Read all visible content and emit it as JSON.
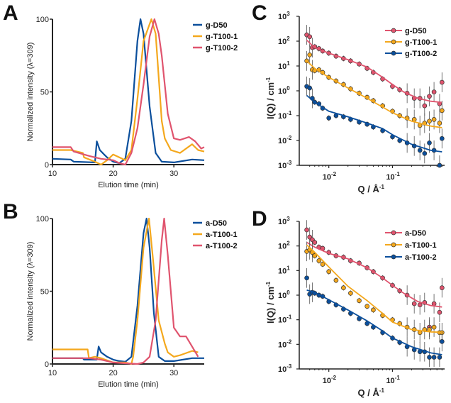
{
  "colors": {
    "blue": "#0b4f9c",
    "orange": "#f4a81d",
    "pink": "#e0546e"
  },
  "chart_data": [
    {
      "panel": "A",
      "type": "line",
      "xlabel": "Elution time (min)",
      "ylabel": "Normalized intensity (λ=309)",
      "xlim": [
        10,
        35
      ],
      "ylim": [
        0,
        100
      ],
      "xticks": [
        10,
        20,
        30
      ],
      "yticks": [
        0,
        50,
        100
      ],
      "legend_position": "top-right",
      "series": [
        {
          "name": "g-D50",
          "color": "#0b4f9c",
          "x": [
            10,
            13,
            13.5,
            17,
            17.3,
            17.8,
            18.5,
            19,
            20,
            21,
            22,
            23,
            24,
            24.5,
            25,
            26,
            27,
            28,
            30,
            33,
            35
          ],
          "y": [
            4,
            3.5,
            2,
            1.5,
            16,
            10,
            7,
            5,
            2,
            1,
            4,
            30,
            85,
            100,
            90,
            40,
            8,
            2,
            1.5,
            3.5,
            3
          ]
        },
        {
          "name": "g-T100-1",
          "color": "#f4a81d",
          "x": [
            10,
            13,
            15,
            15.2,
            17,
            18,
            19,
            20,
            21,
            22,
            23,
            24,
            25,
            26.3,
            27,
            28,
            28.5,
            29.5,
            31,
            33,
            34,
            35
          ],
          "y": [
            10,
            10,
            8,
            5,
            2,
            0,
            3,
            7,
            5,
            3,
            10,
            45,
            85,
            100,
            90,
            30,
            18,
            10,
            8,
            14,
            10,
            9
          ]
        },
        {
          "name": "g-T100-2",
          "color": "#e0546e",
          "x": [
            10,
            13,
            13.5,
            16,
            18,
            20,
            21,
            22,
            23,
            24,
            25,
            26,
            26.8,
            27.5,
            28,
            29,
            30,
            31,
            32.5,
            33.5,
            34.5,
            35
          ],
          "y": [
            12,
            12,
            9,
            6,
            4,
            3,
            1,
            0,
            8,
            25,
            55,
            88,
            100,
            90,
            75,
            35,
            18,
            17,
            19,
            16,
            11,
            12
          ]
        }
      ]
    },
    {
      "panel": "B",
      "type": "line",
      "xlabel": "Elution time (min)",
      "ylabel": "Normalized intensity (λ=309)",
      "xlim": [
        10,
        35
      ],
      "ylim": [
        0,
        100
      ],
      "xticks": [
        10,
        20,
        30
      ],
      "yticks": [
        0,
        50,
        100
      ],
      "legend_position": "top-right",
      "series": [
        {
          "name": "a-D50",
          "color": "#0b4f9c",
          "x": [
            10,
            15,
            15.2,
            17.3,
            17.6,
            18,
            19,
            20,
            21,
            22,
            23,
            24,
            25,
            25.5,
            26,
            26.7,
            27.5,
            28.5,
            30,
            33,
            35
          ],
          "y": [
            4,
            4,
            3,
            3,
            12,
            8,
            5,
            3,
            2,
            1.5,
            5,
            40,
            90,
            100,
            80,
            35,
            5,
            2,
            2,
            4,
            4
          ]
        },
        {
          "name": "a-T100-1",
          "color": "#f4a81d",
          "x": [
            10,
            15.8,
            16,
            17,
            18,
            20,
            22,
            23,
            23.3,
            24,
            25,
            25.9,
            26.5,
            27.5,
            28.5,
            29,
            30,
            31,
            33,
            34
          ],
          "y": [
            10,
            10,
            4,
            5,
            4,
            1,
            1,
            0,
            5,
            30,
            80,
            100,
            75,
            30,
            14,
            8,
            5,
            6,
            9,
            8
          ]
        },
        {
          "name": "a-T100-2",
          "color": "#e0546e",
          "x": [
            10,
            16,
            18,
            20,
            22,
            24,
            25,
            26,
            27,
            28,
            28.4,
            29,
            30,
            31,
            32,
            33,
            34
          ],
          "y": [
            4,
            4,
            3,
            1,
            0.5,
            0,
            1,
            5,
            30,
            85,
            100,
            75,
            25,
            19,
            19,
            12,
            5
          ]
        }
      ]
    },
    {
      "panel": "C",
      "type": "scatter",
      "xlabel": "Q / Å",
      "xlabel_sup": "-1",
      "ylabel": "I(Q) / cm",
      "ylabel_sup": "-1",
      "xscale": "log",
      "yscale": "log",
      "xlim": [
        0.004,
        0.66
      ],
      "ylim": [
        0.001,
        1000
      ],
      "xticks": [
        {
          "base": "10",
          "exp": "-2",
          "value": 0.01
        },
        {
          "base": "10",
          "exp": "-1",
          "value": 0.1
        }
      ],
      "yticks": [
        {
          "base": "10",
          "exp": "-3",
          "value": 0.001
        },
        {
          "base": "10",
          "exp": "-2",
          "value": 0.01
        },
        {
          "base": "10",
          "exp": "-1",
          "value": 0.1
        },
        {
          "base": "10",
          "exp": "0",
          "value": 1
        },
        {
          "base": "10",
          "exp": "1",
          "value": 10
        },
        {
          "base": "10",
          "exp": "2",
          "value": 100
        },
        {
          "base": "10",
          "exp": "3",
          "value": 1000
        }
      ],
      "legend_position": "top-right",
      "q": [
        0.0045,
        0.005,
        0.0055,
        0.006,
        0.007,
        0.008,
        0.01,
        0.013,
        0.017,
        0.022,
        0.03,
        0.04,
        0.05,
        0.07,
        0.1,
        0.13,
        0.17,
        0.22,
        0.27,
        0.32,
        0.38,
        0.45,
        0.55,
        0.6
      ],
      "series": [
        {
          "name": "g-D50",
          "color": "#e0546e",
          "I": [
            180,
            150,
            55,
            60,
            50,
            40,
            33,
            25,
            20,
            16,
            12,
            8,
            5.5,
            3,
            1.5,
            1.1,
            0.8,
            0.5,
            0.5,
            0.25,
            0.6,
            0.9,
            0.3,
            2.2
          ],
          "fit": {
            "q": [
              0.0045,
              0.006,
              0.01,
              0.02,
              0.04,
              0.07,
              0.1,
              0.15,
              0.25,
              0.4,
              0.6
            ],
            "I": [
              110,
              55,
              33,
              18,
              9,
              3.5,
              1.8,
              0.9,
              0.5,
              0.38,
              0.34
            ]
          }
        },
        {
          "name": "g-T100-1",
          "color": "#f4a81d",
          "I": [
            16,
            28,
            7,
            6.5,
            7,
            5.5,
            3.5,
            2.5,
            1.8,
            1.2,
            0.8,
            0.55,
            0.4,
            0.25,
            0.15,
            0.1,
            0.08,
            0.07,
            0.04,
            0.05,
            0.06,
            0.07,
            0.05,
            0.16
          ],
          "fit": {
            "q": [
              0.0045,
              0.006,
              0.01,
              0.02,
              0.04,
              0.07,
              0.1,
              0.2,
              0.4,
              0.6
            ],
            "I": [
              16,
              8,
              3.5,
              1.3,
              0.5,
              0.22,
              0.13,
              0.06,
              0.038,
              0.033
            ]
          }
        },
        {
          "name": "g-T100-2",
          "color": "#0b4f9c",
          "I": [
            1.5,
            1.3,
            0.5,
            0.35,
            0.3,
            0.2,
            0.08,
            0.1,
            0.09,
            0.07,
            0.055,
            0.045,
            0.035,
            0.025,
            0.014,
            0.01,
            0.008,
            0.006,
            0.004,
            0.003,
            0.008,
            0.004,
            0.001,
            0.012
          ],
          "fit": {
            "q": [
              0.0045,
              0.006,
              0.01,
              0.02,
              0.04,
              0.07,
              0.1,
              0.2,
              0.4,
              0.6
            ],
            "I": [
              0.65,
              0.35,
              0.15,
              0.09,
              0.05,
              0.03,
              0.017,
              0.007,
              0.004,
              0.0035
            ]
          }
        }
      ]
    },
    {
      "panel": "D",
      "type": "scatter",
      "xlabel": "Q / Å",
      "xlabel_sup": "-1",
      "ylabel": "I(Q) / cm",
      "ylabel_sup": "-1",
      "xscale": "log",
      "yscale": "log",
      "xlim": [
        0.004,
        0.66
      ],
      "ylim": [
        0.001,
        1000
      ],
      "xticks": [
        {
          "base": "10",
          "exp": "-2",
          "value": 0.01
        },
        {
          "base": "10",
          "exp": "-1",
          "value": 0.1
        }
      ],
      "yticks": [
        {
          "base": "10",
          "exp": "-3",
          "value": 0.001
        },
        {
          "base": "10",
          "exp": "-2",
          "value": 0.01
        },
        {
          "base": "10",
          "exp": "-1",
          "value": 0.1
        },
        {
          "base": "10",
          "exp": "0",
          "value": 1
        },
        {
          "base": "10",
          "exp": "1",
          "value": 10
        },
        {
          "base": "10",
          "exp": "2",
          "value": 100
        },
        {
          "base": "10",
          "exp": "3",
          "value": 1000
        }
      ],
      "legend_position": "top-right",
      "q": [
        0.0045,
        0.005,
        0.0055,
        0.006,
        0.007,
        0.008,
        0.01,
        0.013,
        0.017,
        0.022,
        0.03,
        0.04,
        0.05,
        0.07,
        0.1,
        0.13,
        0.17,
        0.22,
        0.27,
        0.32,
        0.38,
        0.45,
        0.55,
        0.6
      ],
      "series": [
        {
          "name": "a-D50",
          "color": "#e0546e",
          "I": [
            450,
            230,
            180,
            140,
            90,
            80,
            55,
            40,
            35,
            25,
            20,
            13,
            9,
            5,
            2.5,
            1.5,
            1.0,
            0.45,
            0.4,
            0.5,
            0.05,
            0.45,
            0.2,
            2
          ],
          "fit": {
            "q": [
              0.0045,
              0.006,
              0.01,
              0.02,
              0.04,
              0.07,
              0.1,
              0.15,
              0.25,
              0.4,
              0.6
            ],
            "I": [
              140,
              90,
              50,
              30,
              13,
              5,
              2.5,
              1.2,
              0.55,
              0.38,
              0.33
            ]
          }
        },
        {
          "name": "a-T100-1",
          "color": "#f4a81d",
          "I": [
            60,
            70,
            55,
            40,
            25,
            18,
            9,
            4,
            2,
            1.2,
            0.6,
            0.35,
            0.25,
            0.15,
            0.1,
            0.07,
            0.05,
            0.04,
            0.03,
            0.04,
            0.04,
            0.05,
            0.03,
            0.03
          ],
          "fit": {
            "q": [
              0.0045,
              0.006,
              0.01,
              0.02,
              0.04,
              0.07,
              0.1,
              0.2,
              0.4,
              0.6
            ],
            "I": [
              110,
              55,
              14,
              2.3,
              0.6,
              0.18,
              0.08,
              0.04,
              0.032,
              0.031
            ]
          }
        },
        {
          "name": "a-T100-2",
          "color": "#0b4f9c",
          "I": [
            5,
            1.1,
            1.3,
            1.2,
            1.0,
            0.9,
            0.55,
            0.4,
            0.27,
            0.18,
            0.11,
            0.07,
            0.05,
            0.03,
            0.018,
            0.012,
            0.008,
            0.006,
            0.005,
            0.005,
            0.003,
            0.003,
            0.003,
            0.013
          ],
          "fit": {
            "q": [
              0.0045,
              0.006,
              0.01,
              0.02,
              0.04,
              0.07,
              0.1,
              0.2,
              0.4,
              0.6
            ],
            "I": [
              1.6,
              1.3,
              0.65,
              0.25,
              0.09,
              0.035,
              0.018,
              0.008,
              0.0045,
              0.0038
            ]
          }
        }
      ]
    }
  ]
}
